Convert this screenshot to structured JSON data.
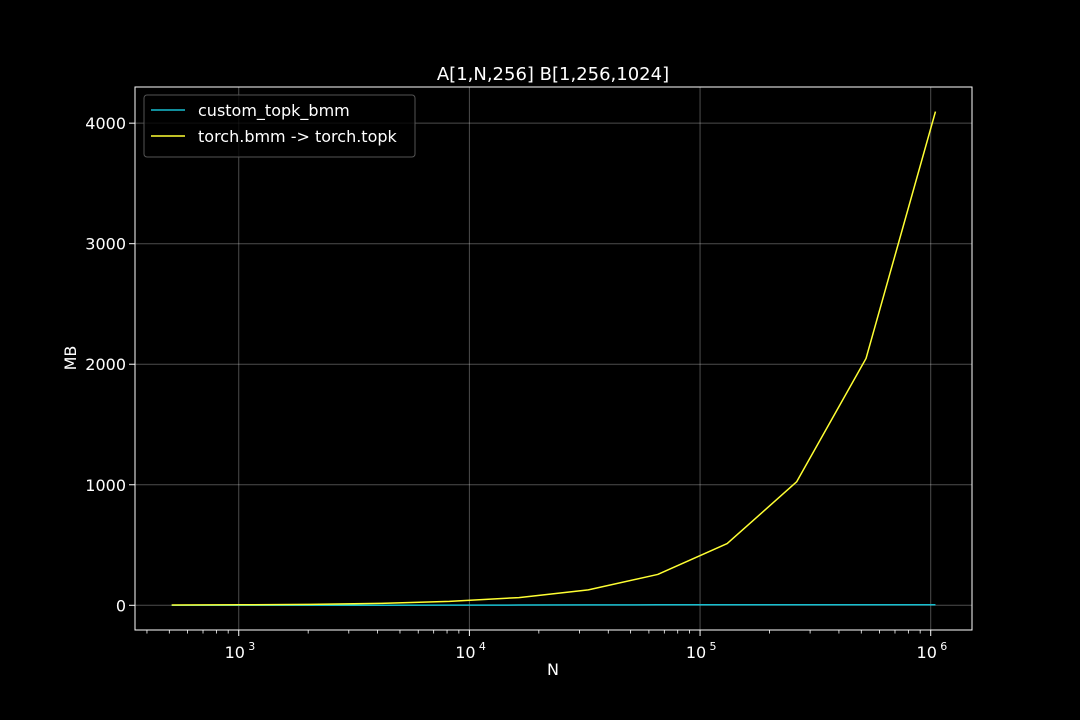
{
  "chart_data": {
    "type": "line",
    "title": "A[1,N,256] B[1,256,1024]",
    "xlabel": "N",
    "ylabel": "MB",
    "xscale": "log",
    "xlim": [
      355,
      1510000
    ],
    "ylim": [
      -205,
      4300
    ],
    "grid": true,
    "legend_position": "top-left",
    "x_ticks": [
      {
        "base": "10",
        "exp": "3",
        "value": 1000
      },
      {
        "base": "10",
        "exp": "4",
        "value": 10000
      },
      {
        "base": "10",
        "exp": "5",
        "value": 100000
      },
      {
        "base": "10",
        "exp": "6",
        "value": 1000000
      }
    ],
    "y_ticks": [
      {
        "label": "0",
        "value": 0
      },
      {
        "label": "1000",
        "value": 1000
      },
      {
        "label": "2000",
        "value": 2000
      },
      {
        "label": "3000",
        "value": 3000
      },
      {
        "label": "4000",
        "value": 4000
      }
    ],
    "x": [
      512,
      1024,
      2048,
      4096,
      8192,
      16384,
      32768,
      65536,
      131072,
      262144,
      524288,
      1048576
    ],
    "series": [
      {
        "name": "custom_topk_bmm",
        "color": "#17becf",
        "values": [
          0.1,
          0.2,
          0.3,
          0.5,
          1,
          2,
          3,
          4,
          4,
          4,
          4,
          4
        ]
      },
      {
        "name": "torch.bmm -> torch.topk",
        "color": "#ffff33",
        "values": [
          2,
          4,
          8,
          16,
          32,
          64,
          128,
          256,
          512,
          1024,
          2048,
          4096
        ]
      }
    ]
  }
}
